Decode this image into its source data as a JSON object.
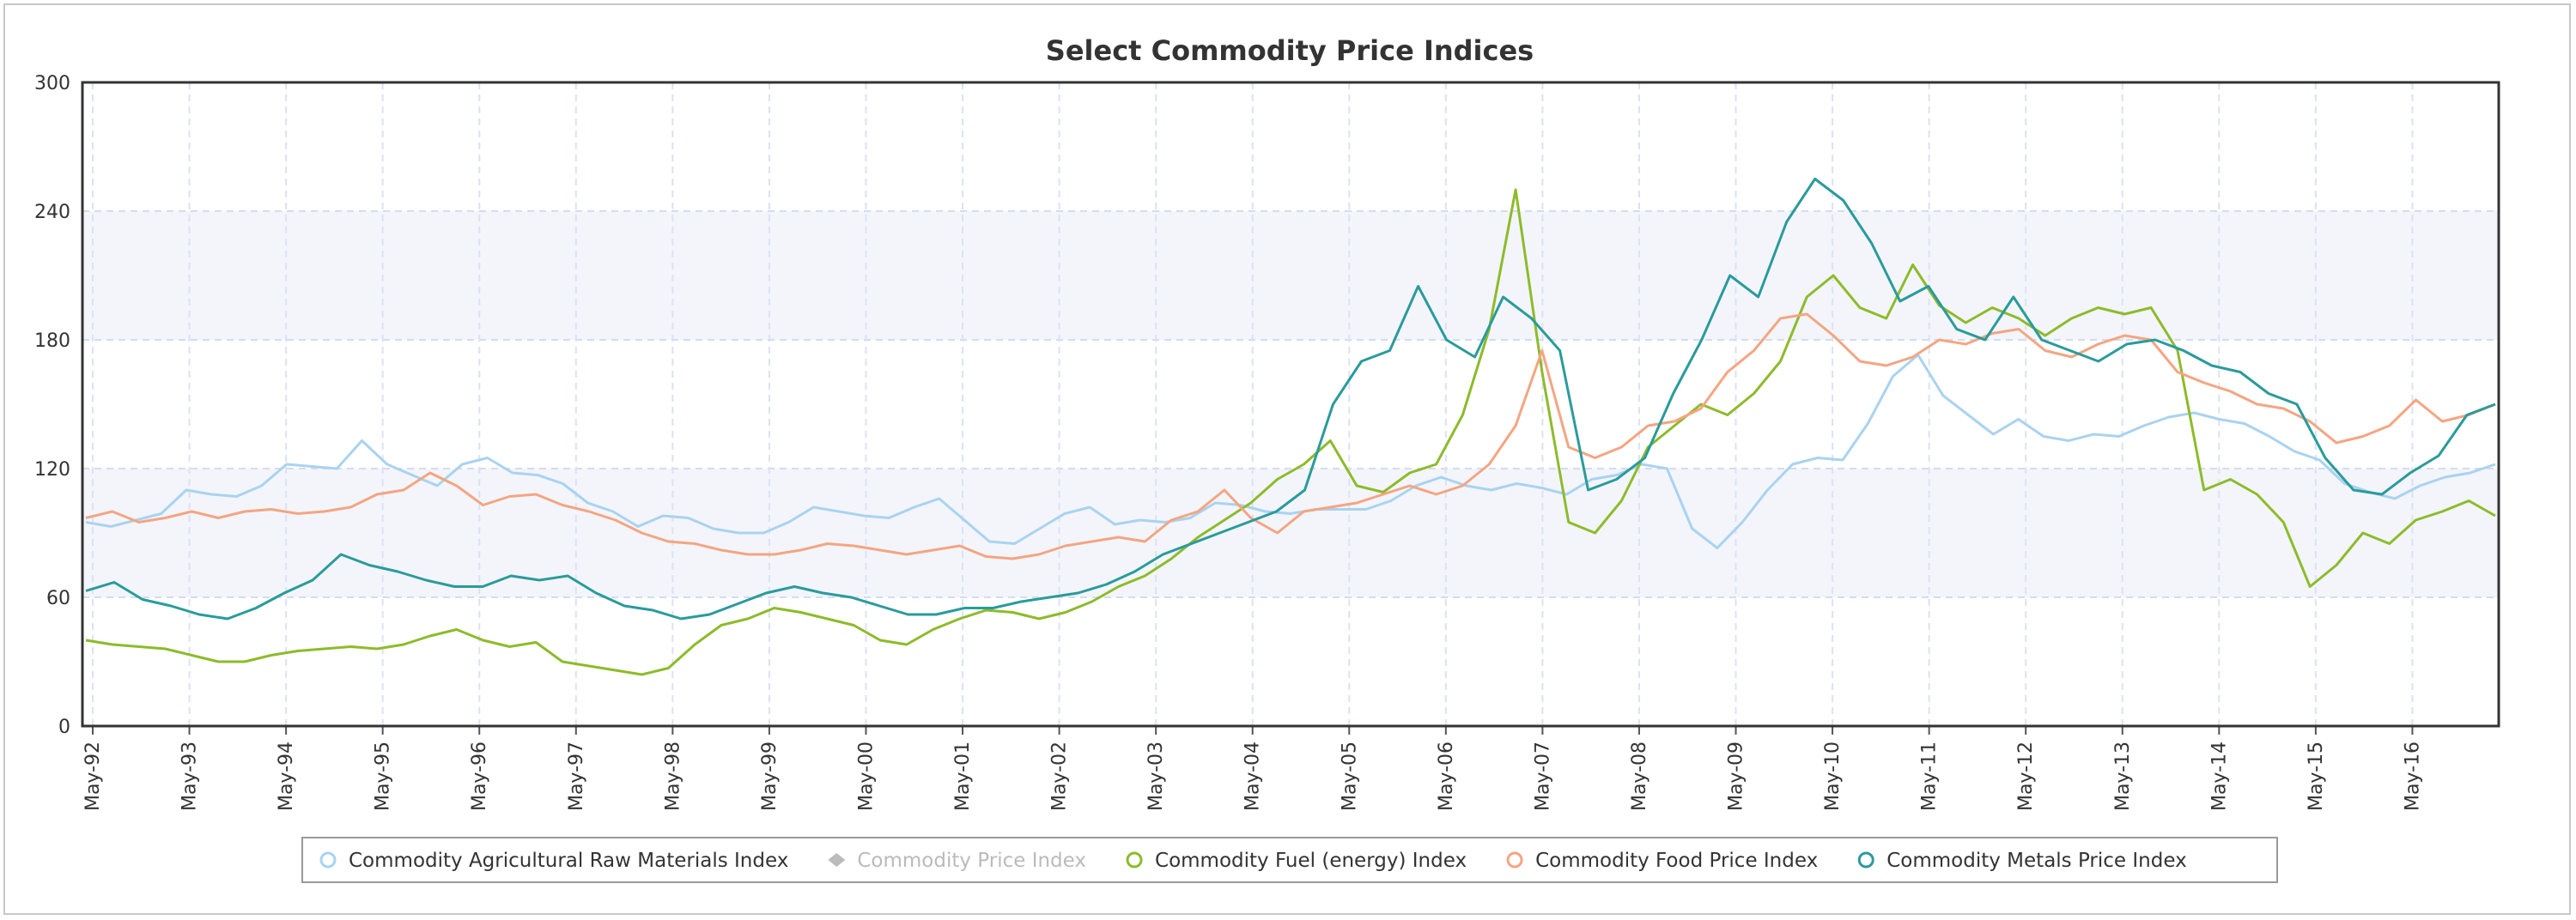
{
  "chart_data": {
    "type": "line",
    "title": "Select Commodity Price Indices",
    "xlabel": "",
    "ylabel": "",
    "ylim": [
      0,
      300
    ],
    "yticks": [
      0,
      60,
      120,
      180,
      240,
      300
    ],
    "x_start": "May-92",
    "x_end": "Dec-16",
    "x_ticks": [
      "May-92",
      "May-93",
      "May-94",
      "May-95",
      "May-96",
      "May-97",
      "May-98",
      "May-99",
      "May-00",
      "May-01",
      "May-02",
      "May-03",
      "May-04",
      "May-05",
      "May-06",
      "May-07",
      "May-08",
      "May-09",
      "May-10",
      "May-11",
      "May-12",
      "May-13",
      "May-14",
      "May-15",
      "May-16"
    ],
    "grid": true,
    "legend_position": "bottom",
    "series": [
      {
        "name": "Commodity Agricultural Raw Materials Index",
        "color": "#a9d3f0",
        "visible": true,
        "values": [
          95,
          93,
          96,
          99,
          110,
          108,
          107,
          112,
          122,
          121,
          120,
          133,
          122,
          117,
          112,
          122,
          125,
          118,
          117,
          113,
          104,
          100,
          93,
          98,
          97,
          92,
          90,
          90,
          95,
          102,
          100,
          98,
          97,
          102,
          106,
          96,
          86,
          85,
          92,
          99,
          102,
          94,
          96,
          95,
          97,
          104,
          103,
          100,
          99,
          101,
          101,
          101,
          105,
          112,
          116,
          112,
          110,
          113,
          111,
          108,
          115,
          117,
          122,
          120,
          92,
          83,
          95,
          110,
          122,
          125,
          124,
          141,
          163,
          173,
          154,
          145,
          136,
          143,
          135,
          133,
          136,
          135,
          140,
          144,
          146,
          143,
          141,
          135,
          128,
          124,
          113,
          109,
          106,
          112,
          116,
          118,
          122
        ]
      },
      {
        "name": "Commodity Price Index",
        "color": "#bbbbbb",
        "visible": false,
        "values": []
      },
      {
        "name": "Commodity Fuel (energy) Index",
        "color": "#8dbb2a",
        "visible": true,
        "values": [
          40,
          38,
          37,
          36,
          33,
          30,
          30,
          33,
          35,
          36,
          37,
          36,
          38,
          42,
          45,
          40,
          37,
          39,
          30,
          28,
          26,
          24,
          27,
          38,
          47,
          50,
          55,
          53,
          50,
          47,
          40,
          38,
          45,
          50,
          54,
          53,
          50,
          53,
          58,
          65,
          70,
          78,
          88,
          96,
          104,
          115,
          122,
          133,
          112,
          109,
          118,
          122,
          145,
          185,
          250,
          165,
          95,
          90,
          105,
          130,
          140,
          150,
          145,
          155,
          170,
          200,
          210,
          195,
          190,
          215,
          196,
          188,
          195,
          190,
          182,
          190,
          195,
          192,
          195,
          175,
          110,
          115,
          108,
          95,
          65,
          75,
          90,
          85,
          96,
          100,
          105,
          98
        ]
      },
      {
        "name": "Commodity Food Price Index",
        "color": "#f4a582",
        "visible": true,
        "values": [
          97,
          100,
          95,
          97,
          100,
          97,
          100,
          101,
          99,
          100,
          102,
          108,
          110,
          118,
          112,
          103,
          107,
          108,
          103,
          100,
          96,
          90,
          86,
          85,
          82,
          80,
          80,
          82,
          85,
          84,
          82,
          80,
          82,
          84,
          79,
          78,
          80,
          84,
          86,
          88,
          86,
          96,
          100,
          110,
          97,
          90,
          100,
          102,
          104,
          108,
          112,
          108,
          112,
          122,
          140,
          175,
          130,
          125,
          130,
          140,
          142,
          148,
          165,
          175,
          190,
          192,
          182,
          170,
          168,
          172,
          180,
          178,
          183,
          185,
          175,
          172,
          178,
          182,
          180,
          165,
          160,
          156,
          150,
          148,
          142,
          132,
          135,
          140,
          152,
          142,
          145,
          150
        ]
      },
      {
        "name": "Commodity Metals Price Index",
        "color": "#2a9b9b",
        "visible": true,
        "values": [
          63,
          67,
          59,
          56,
          52,
          50,
          55,
          62,
          68,
          80,
          75,
          72,
          68,
          65,
          65,
          70,
          68,
          70,
          62,
          56,
          54,
          50,
          52,
          57,
          62,
          65,
          62,
          60,
          56,
          52,
          52,
          55,
          55,
          58,
          60,
          62,
          66,
          72,
          80,
          85,
          90,
          95,
          100,
          110,
          150,
          170,
          175,
          205,
          180,
          172,
          200,
          190,
          175,
          110,
          115,
          125,
          155,
          180,
          210,
          200,
          235,
          255,
          245,
          225,
          198,
          205,
          185,
          180,
          200,
          180,
          175,
          170,
          178,
          180,
          175,
          168,
          165,
          155,
          150,
          125,
          110,
          108,
          118,
          126,
          145,
          150
        ]
      }
    ]
  }
}
